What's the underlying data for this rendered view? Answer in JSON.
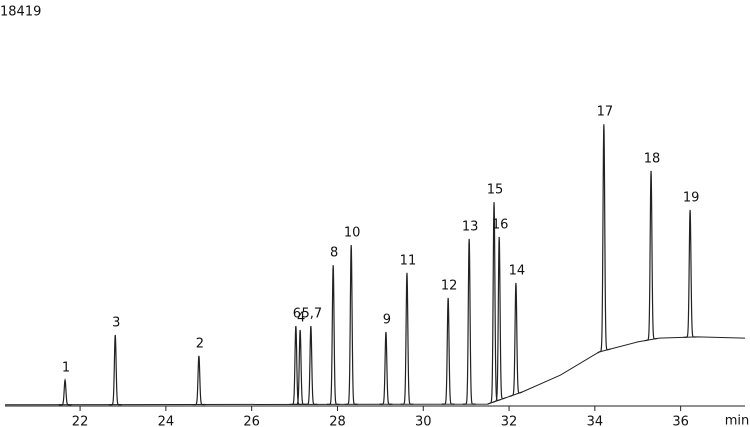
{
  "chart_data": {
    "type": "chromatogram",
    "title": "18419",
    "xlabel": "min",
    "xlim": [
      20.25,
      37.5
    ],
    "xticks": [
      22,
      24,
      26,
      28,
      30,
      32,
      34,
      36
    ],
    "ylim": [
      0,
      100
    ],
    "color": "#222222",
    "baseline": {
      "x": [
        20.25,
        31.5,
        32.3,
        33.2,
        34.1,
        35,
        35.5,
        36.4,
        37.5
      ],
      "y": [
        0.3,
        0.5,
        3.6,
        8,
        14,
        16.6,
        17.6,
        17.9,
        17.6
      ]
    },
    "peaks": [
      {
        "label": "1",
        "time": 21.65,
        "height": 6.7
      },
      {
        "label": "3",
        "time": 22.82,
        "height": 18.4
      },
      {
        "label": "2",
        "time": 24.77,
        "height": 13
      },
      {
        "label": "6",
        "time": 27.03,
        "height": 20.7
      },
      {
        "label": "4",
        "time": 27.13,
        "height": 19.7
      },
      {
        "label": "5,7",
        "time": 27.38,
        "height": 20.7
      },
      {
        "label": "8",
        "time": 27.9,
        "height": 36.5
      },
      {
        "label": "10",
        "time": 28.32,
        "height": 41.7
      },
      {
        "label": "9",
        "time": 29.13,
        "height": 19.2
      },
      {
        "label": "11",
        "time": 29.62,
        "height": 34.5
      },
      {
        "label": "12",
        "time": 30.58,
        "height": 28
      },
      {
        "label": "13",
        "time": 31.07,
        "height": 43.3
      },
      {
        "label": "15",
        "time": 31.65,
        "height": 52.8
      },
      {
        "label": "16",
        "time": 31.77,
        "height": 43.8
      },
      {
        "label": "14",
        "time": 32.16,
        "height": 31.9
      },
      {
        "label": "17",
        "time": 34.21,
        "height": 73
      },
      {
        "label": "18",
        "time": 35.31,
        "height": 60.9
      },
      {
        "label": "19",
        "time": 36.22,
        "height": 50.8
      }
    ]
  }
}
